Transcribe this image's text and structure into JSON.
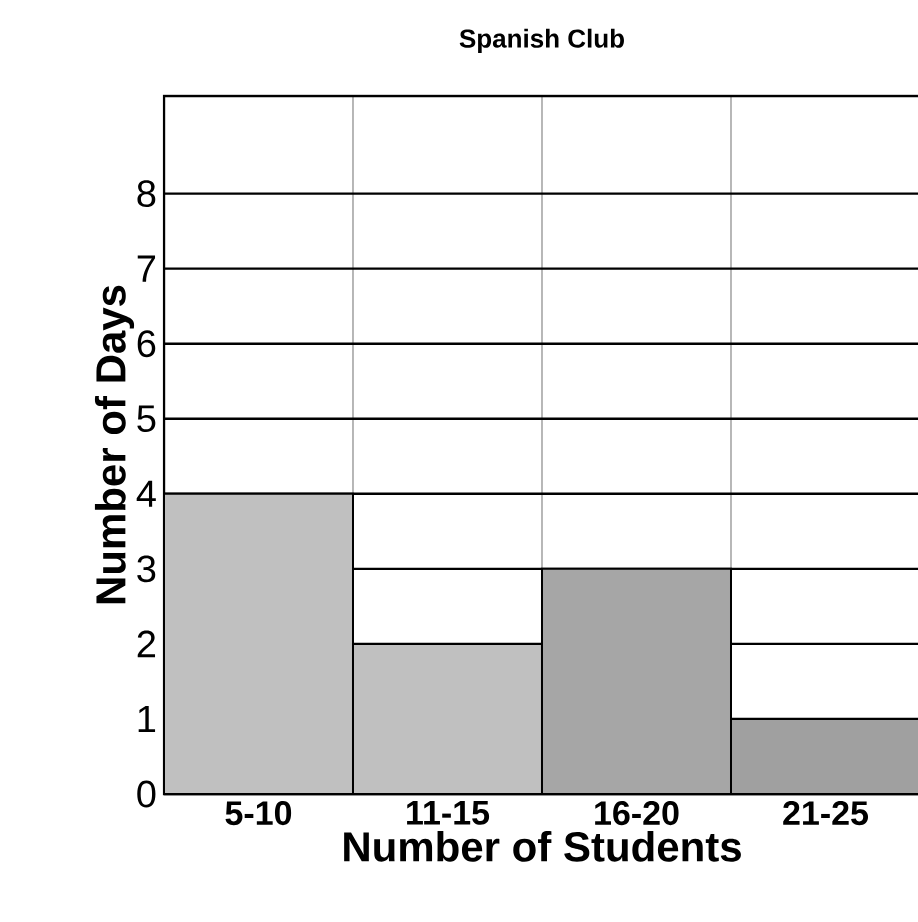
{
  "chart_data": {
    "type": "bar",
    "title": "Spanish Club",
    "xlabel": "Number of Students",
    "ylabel": "Number of Days",
    "categories": [
      "5-10",
      "11-15",
      "16-20",
      "21-25"
    ],
    "values": [
      4,
      2,
      3,
      1
    ],
    "colors": [
      "#c0c0c0",
      "#c0c0c0",
      "#a6a6a6",
      "#a0a0a0"
    ],
    "ylim": [
      0,
      9.3
    ],
    "yticks": [
      0,
      1,
      2,
      3,
      4,
      5,
      6,
      7,
      8
    ],
    "grid": true
  }
}
